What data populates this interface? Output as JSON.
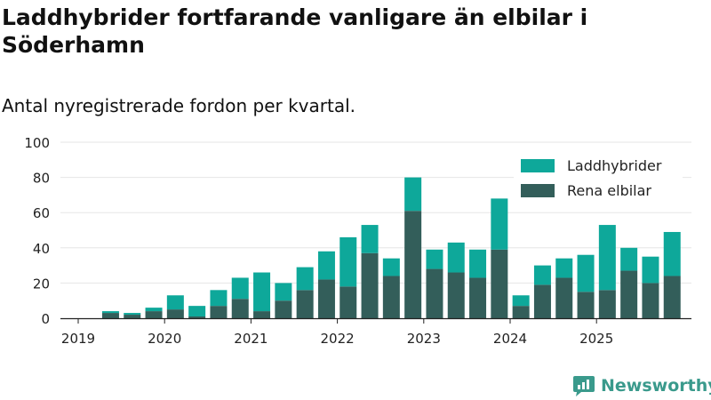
{
  "title": "Laddhybrider fortfarande vanligare än elbilar i Söderhamn",
  "subtitle": "Antal nyregistrerade fordon per kvartal.",
  "brand": "Newsworthy",
  "colors": {
    "phev": "#0ea89a",
    "bev": "#335e5a",
    "grid": "#e6e6e6",
    "axis": "#222222",
    "brand": "#3a9a8c"
  },
  "chart_data": {
    "type": "bar",
    "stacked": true,
    "categories": [
      "2019 Q1",
      "2019 Q2",
      "2019 Q3",
      "2019 Q4",
      "2020 Q1",
      "2020 Q2",
      "2020 Q3",
      "2020 Q4",
      "2021 Q1",
      "2021 Q2",
      "2021 Q3",
      "2021 Q4",
      "2022 Q1",
      "2022 Q2",
      "2022 Q3",
      "2022 Q4",
      "2023 Q1",
      "2023 Q2",
      "2023 Q3",
      "2023 Q4",
      "2024 Q1",
      "2024 Q2",
      "2024 Q3",
      "2024 Q4",
      "2025 Q1",
      "2025 Q2",
      "2025 Q3",
      "2025 Q4"
    ],
    "series": [
      {
        "name": "Rena elbilar",
        "color": "#335e5a",
        "values": [
          0,
          3,
          2,
          4,
          5,
          1,
          7,
          11,
          4,
          10,
          16,
          22,
          18,
          37,
          24,
          61,
          28,
          26,
          23,
          39,
          7,
          19,
          23,
          15,
          16,
          27,
          20,
          24
        ]
      },
      {
        "name": "Laddhybrider",
        "color": "#0ea89a",
        "values": [
          0,
          1,
          1,
          2,
          8,
          6,
          9,
          12,
          22,
          10,
          13,
          16,
          28,
          16,
          10,
          19,
          11,
          17,
          16,
          29,
          6,
          11,
          11,
          21,
          37,
          13,
          15,
          25
        ]
      }
    ],
    "xticks": [
      "2019",
      "2020",
      "2021",
      "2022",
      "2023",
      "2024",
      "2025"
    ],
    "yticks": [
      0,
      20,
      40,
      60,
      80,
      100
    ],
    "ylim": [
      0,
      100
    ],
    "legend": {
      "position": "top-right",
      "entries": [
        "Laddhybrider",
        "Rena elbilar"
      ]
    },
    "xlabel": "",
    "ylabel": ""
  }
}
